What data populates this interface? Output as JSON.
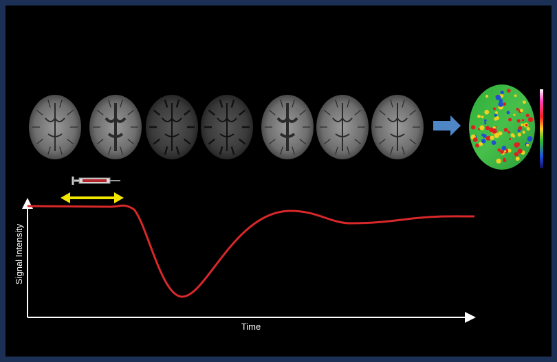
{
  "axes": {
    "y_label": "Signal Intensity",
    "x_label": "Time"
  }
}
